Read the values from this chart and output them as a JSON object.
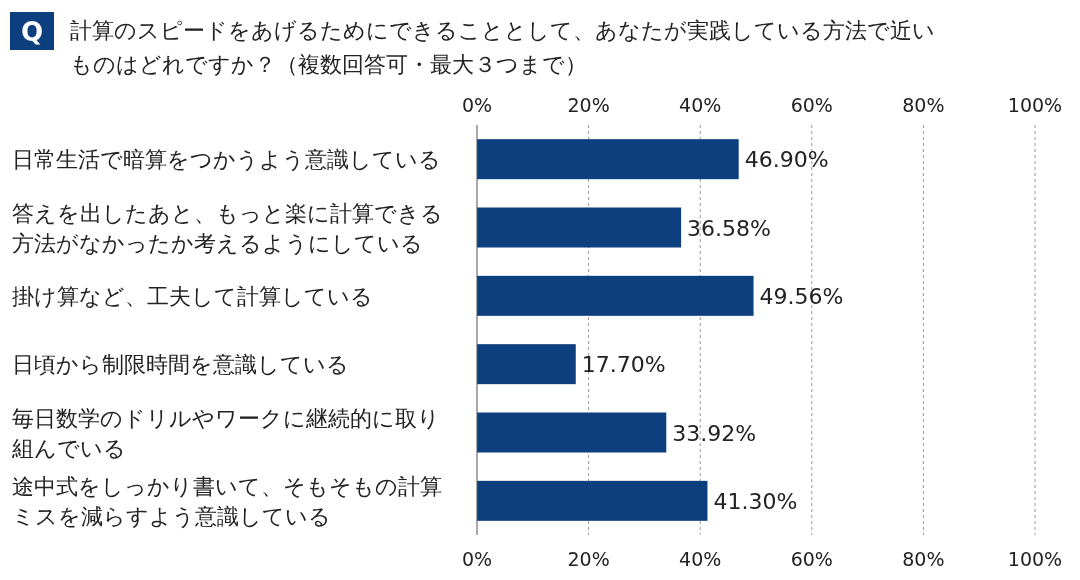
{
  "chart_data": {
    "type": "bar",
    "orientation": "horizontal",
    "title": "計算のスピードをあげるためにできることとして、あなたが実践している方法で近いものはどれですか？（複数回答可・最大３つまで）",
    "annotations": [
      "Q"
    ],
    "categories": [
      "日常生活で暗算をつかうよう意識している",
      "答えを出したあと、もっと楽に計算できる方法がなかったか考えるようにしている",
      "掛け算など、工夫して計算している",
      "日頃から制限時間を意識している",
      "毎日数学のドリルやワークに継続的に取り組んでいる",
      "途中式をしっかり書いて、そもそもの計算ミスを減らすよう意識している"
    ],
    "values": [
      46.9,
      36.58,
      49.56,
      17.7,
      33.92,
      41.3
    ],
    "value_labels": [
      "46.90%",
      "36.58%",
      "49.56%",
      "17.70%",
      "33.92%",
      "41.30%"
    ],
    "color": "#0d3f7f",
    "xlim": [
      0,
      100
    ],
    "xticks": [
      {
        "value": 0,
        "label": "0%"
      },
      {
        "value": 20,
        "label": "20%"
      },
      {
        "value": 40,
        "label": "40%"
      },
      {
        "value": 60,
        "label": "60%"
      },
      {
        "value": 80,
        "label": "80%"
      },
      {
        "value": 100,
        "label": "100%"
      }
    ],
    "x2lim": [
      0,
      100
    ],
    "x2ticks": [
      {
        "value": 0,
        "label": "0%"
      },
      {
        "value": 20,
        "label": "20%"
      },
      {
        "value": 40,
        "label": "40%"
      },
      {
        "value": 60,
        "label": "60%"
      },
      {
        "value": 80,
        "label": "80%"
      },
      {
        "value": 100,
        "label": "100%"
      }
    ],
    "grid": "x"
  }
}
